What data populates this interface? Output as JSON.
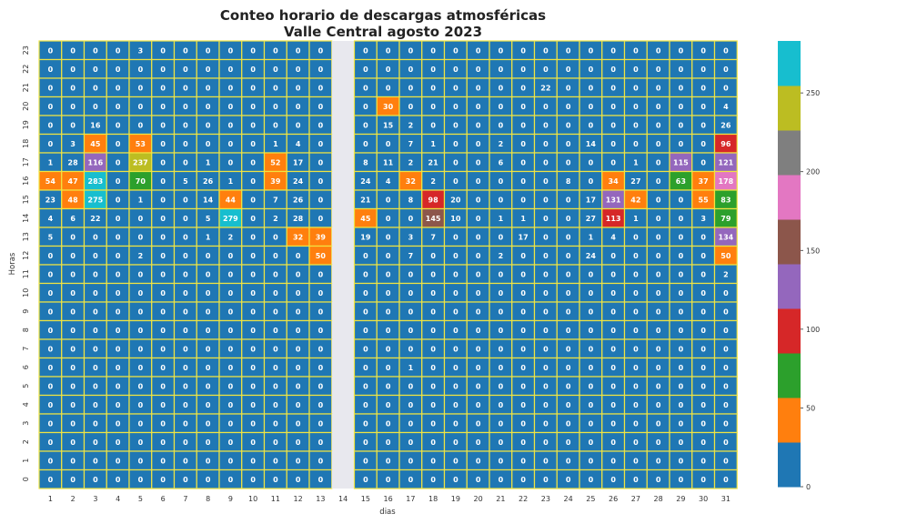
{
  "chart_data": {
    "type": "heatmap",
    "title_line1": "Conteo horario de descargas atmosféricas",
    "title_line2": "Valle Central agosto 2023",
    "xlabel": "dias",
    "ylabel": "Horas",
    "x": [
      "1",
      "2",
      "3",
      "4",
      "5",
      "6",
      "7",
      "8",
      "9",
      "10",
      "11",
      "12",
      "13",
      "14",
      "15",
      "16",
      "17",
      "18",
      "19",
      "20",
      "21",
      "22",
      "23",
      "24",
      "25",
      "26",
      "27",
      "28",
      "29",
      "30",
      "31"
    ],
    "y": [
      "0",
      "1",
      "2",
      "3",
      "4",
      "5",
      "6",
      "7",
      "8",
      "9",
      "10",
      "11",
      "12",
      "13",
      "14",
      "15",
      "16",
      "17",
      "18",
      "19",
      "20",
      "21",
      "22",
      "23"
    ],
    "missing_column": "14",
    "colorbar": {
      "ticks": [
        0,
        50,
        100,
        150,
        200,
        250
      ],
      "vmin": 0,
      "vmax": 283,
      "colors": [
        "#1f77b4",
        "#ff7f0e",
        "#2ca02c",
        "#d62728",
        "#9467bd",
        "#8c564b",
        "#e377c2",
        "#7f7f7f",
        "#bcbd22",
        "#17becf"
      ]
    },
    "cell_border_color": "#f0e442",
    "missing_color": "#e8e8ee",
    "values": {
      "23": [
        0,
        0,
        0,
        0,
        3,
        0,
        0,
        0,
        0,
        0,
        0,
        0,
        0,
        null,
        0,
        0,
        0,
        0,
        0,
        0,
        0,
        0,
        0,
        0,
        0,
        0,
        0,
        0,
        0,
        0,
        0
      ],
      "22": [
        0,
        0,
        0,
        0,
        0,
        0,
        0,
        0,
        0,
        0,
        0,
        0,
        0,
        null,
        0,
        0,
        0,
        0,
        0,
        0,
        0,
        0,
        0,
        0,
        0,
        0,
        0,
        0,
        0,
        0,
        0
      ],
      "21": [
        0,
        0,
        0,
        0,
        0,
        0,
        0,
        0,
        0,
        0,
        0,
        0,
        0,
        null,
        0,
        0,
        0,
        0,
        0,
        0,
        0,
        0,
        22,
        0,
        0,
        0,
        0,
        0,
        0,
        0,
        0
      ],
      "20": [
        0,
        0,
        0,
        0,
        0,
        0,
        0,
        0,
        0,
        0,
        0,
        0,
        0,
        null,
        0,
        30,
        0,
        0,
        0,
        0,
        0,
        0,
        0,
        0,
        0,
        0,
        0,
        0,
        0,
        0,
        4
      ],
      "19": [
        0,
        0,
        16,
        0,
        0,
        0,
        0,
        0,
        0,
        0,
        0,
        0,
        0,
        null,
        0,
        15,
        2,
        0,
        0,
        0,
        0,
        0,
        0,
        0,
        0,
        0,
        0,
        0,
        0,
        0,
        26
      ],
      "18": [
        0,
        3,
        45,
        0,
        53,
        0,
        0,
        0,
        0,
        0,
        1,
        4,
        0,
        null,
        0,
        0,
        7,
        1,
        0,
        0,
        2,
        0,
        0,
        0,
        14,
        0,
        0,
        0,
        0,
        0,
        96
      ],
      "17": [
        1,
        28,
        116,
        0,
        237,
        0,
        0,
        1,
        0,
        0,
        52,
        17,
        0,
        null,
        8,
        11,
        2,
        21,
        0,
        0,
        6,
        0,
        0,
        0,
        0,
        0,
        1,
        0,
        115,
        0,
        121
      ],
      "16": [
        54,
        47,
        283,
        0,
        70,
        0,
        5,
        26,
        1,
        0,
        39,
        24,
        0,
        null,
        24,
        4,
        32,
        2,
        0,
        0,
        0,
        0,
        0,
        8,
        0,
        34,
        27,
        0,
        63,
        37,
        178
      ],
      "15": [
        23,
        48,
        275,
        0,
        1,
        0,
        0,
        14,
        44,
        0,
        7,
        26,
        0,
        null,
        21,
        0,
        8,
        98,
        20,
        0,
        0,
        0,
        0,
        0,
        17,
        131,
        42,
        0,
        0,
        55,
        83
      ],
      "14": [
        4,
        6,
        22,
        0,
        0,
        0,
        0,
        5,
        279,
        0,
        2,
        28,
        0,
        null,
        45,
        0,
        0,
        145,
        10,
        0,
        1,
        1,
        0,
        0,
        27,
        113,
        1,
        0,
        0,
        3,
        79
      ],
      "13": [
        5,
        0,
        0,
        0,
        0,
        0,
        0,
        1,
        2,
        0,
        0,
        32,
        39,
        null,
        19,
        0,
        3,
        7,
        0,
        0,
        0,
        17,
        0,
        0,
        1,
        4,
        0,
        0,
        0,
        0,
        134
      ],
      "12": [
        0,
        0,
        0,
        0,
        2,
        0,
        0,
        0,
        0,
        0,
        0,
        0,
        50,
        null,
        0,
        0,
        7,
        0,
        0,
        0,
        2,
        0,
        0,
        0,
        24,
        0,
        0,
        0,
        0,
        0,
        50
      ],
      "11": [
        0,
        0,
        0,
        0,
        0,
        0,
        0,
        0,
        0,
        0,
        0,
        0,
        0,
        null,
        0,
        0,
        0,
        0,
        0,
        0,
        0,
        0,
        0,
        0,
        0,
        0,
        0,
        0,
        0,
        0,
        2
      ],
      "10": [
        0,
        0,
        0,
        0,
        0,
        0,
        0,
        0,
        0,
        0,
        0,
        0,
        0,
        null,
        0,
        0,
        0,
        0,
        0,
        0,
        0,
        0,
        0,
        0,
        0,
        0,
        0,
        0,
        0,
        0,
        0
      ],
      "9": [
        0,
        0,
        0,
        0,
        0,
        0,
        0,
        0,
        0,
        0,
        0,
        0,
        0,
        null,
        0,
        0,
        0,
        0,
        0,
        0,
        0,
        0,
        0,
        0,
        0,
        0,
        0,
        0,
        0,
        0,
        0
      ],
      "8": [
        0,
        0,
        0,
        0,
        0,
        0,
        0,
        0,
        0,
        0,
        0,
        0,
        0,
        null,
        0,
        0,
        0,
        0,
        0,
        0,
        0,
        0,
        0,
        0,
        0,
        0,
        0,
        0,
        0,
        0,
        0
      ],
      "7": [
        0,
        0,
        0,
        0,
        0,
        0,
        0,
        0,
        0,
        0,
        0,
        0,
        0,
        null,
        0,
        0,
        0,
        0,
        0,
        0,
        0,
        0,
        0,
        0,
        0,
        0,
        0,
        0,
        0,
        0,
        0
      ],
      "6": [
        0,
        0,
        0,
        0,
        0,
        0,
        0,
        0,
        0,
        0,
        0,
        0,
        0,
        null,
        0,
        0,
        1,
        0,
        0,
        0,
        0,
        0,
        0,
        0,
        0,
        0,
        0,
        0,
        0,
        0,
        0
      ],
      "5": [
        0,
        0,
        0,
        0,
        0,
        0,
        0,
        0,
        0,
        0,
        0,
        0,
        0,
        null,
        0,
        0,
        0,
        0,
        0,
        0,
        0,
        0,
        0,
        0,
        0,
        0,
        0,
        0,
        0,
        0,
        0
      ],
      "4": [
        0,
        0,
        0,
        0,
        0,
        0,
        0,
        0,
        0,
        0,
        0,
        0,
        0,
        null,
        0,
        0,
        0,
        0,
        0,
        0,
        0,
        0,
        0,
        0,
        0,
        0,
        0,
        0,
        0,
        0,
        0
      ],
      "3": [
        0,
        0,
        0,
        0,
        0,
        0,
        0,
        0,
        0,
        0,
        0,
        0,
        0,
        null,
        0,
        0,
        0,
        0,
        0,
        0,
        0,
        0,
        0,
        0,
        0,
        0,
        0,
        0,
        0,
        0,
        0
      ],
      "2": [
        0,
        0,
        0,
        0,
        0,
        0,
        0,
        0,
        0,
        0,
        0,
        0,
        0,
        null,
        0,
        0,
        0,
        0,
        0,
        0,
        0,
        0,
        0,
        0,
        0,
        0,
        0,
        0,
        0,
        0,
        0
      ],
      "1": [
        0,
        0,
        0,
        0,
        0,
        0,
        0,
        0,
        0,
        0,
        0,
        0,
        0,
        null,
        0,
        0,
        0,
        0,
        0,
        0,
        0,
        0,
        0,
        0,
        0,
        0,
        0,
        0,
        0,
        0,
        0
      ],
      "0": [
        0,
        0,
        0,
        0,
        0,
        0,
        0,
        0,
        0,
        0,
        0,
        0,
        0,
        null,
        0,
        0,
        0,
        0,
        0,
        0,
        0,
        0,
        0,
        0,
        0,
        0,
        0,
        0,
        0,
        0,
        0
      ]
    }
  }
}
